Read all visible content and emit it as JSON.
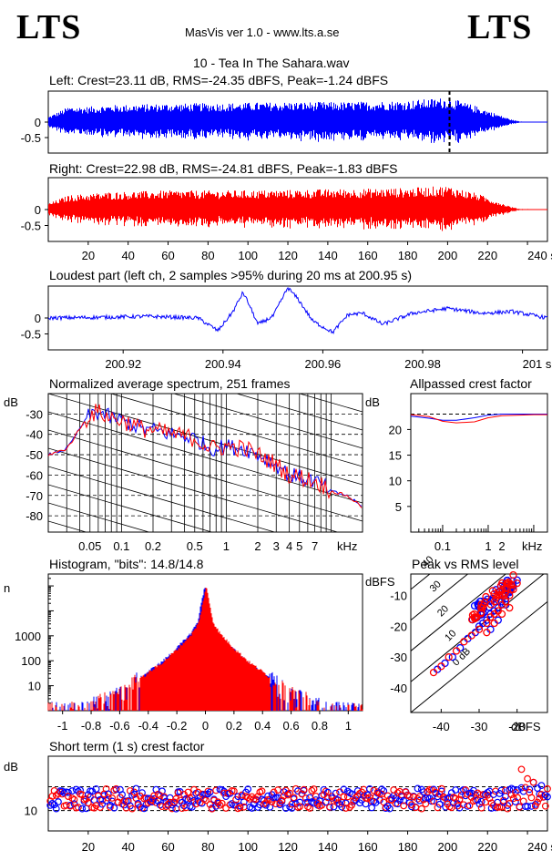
{
  "logo_left": "LTS",
  "logo_right": "LTS",
  "app_title": "MasVis ver 1.0 - www.lts.a.se",
  "file_name": "10 - Tea In The Sahara.wav",
  "colors": {
    "left": "#0000ff",
    "right": "#ff0000",
    "grid": "#000000"
  },
  "chart_data": [
    {
      "id": "left",
      "type": "line",
      "title": "Left: Crest=23.11 dB, RMS=-24.35 dBFS, Peak=-1.24 dBFS",
      "y_ticks": [
        "0",
        "-0.5"
      ],
      "y_ticks_values": [
        0,
        -0.5
      ],
      "ylim": [
        -1,
        1
      ],
      "xlim": [
        0,
        250
      ],
      "marker_x": 200.95,
      "envelope": {
        "x": [
          0,
          10,
          20,
          30,
          60,
          90,
          120,
          150,
          180,
          200,
          215,
          225,
          232,
          236,
          250
        ],
        "amp": [
          0.18,
          0.5,
          0.5,
          0.55,
          0.6,
          0.62,
          0.65,
          0.65,
          0.7,
          0.8,
          0.5,
          0.25,
          0.08,
          0.02,
          0.01
        ]
      }
    },
    {
      "id": "right",
      "type": "line",
      "title": "Right: Crest=22.98 dB, RMS=-24.81 dBFS, Peak=-1.83 dBFS",
      "y_ticks": [
        "0",
        "-0.5"
      ],
      "y_ticks_values": [
        0,
        -0.5
      ],
      "ylim": [
        -1,
        1
      ],
      "xlim": [
        0,
        250
      ],
      "x_ticks": [
        "20",
        "40",
        "60",
        "80",
        "100",
        "120",
        "140",
        "160",
        "180",
        "200",
        "220",
        "240 s"
      ],
      "x_ticks_values": [
        20,
        40,
        60,
        80,
        100,
        120,
        140,
        160,
        180,
        200,
        220,
        240
      ],
      "envelope": {
        "x": [
          0,
          10,
          20,
          30,
          60,
          90,
          120,
          150,
          180,
          200,
          215,
          225,
          232,
          236,
          250
        ],
        "amp": [
          0.2,
          0.45,
          0.5,
          0.55,
          0.6,
          0.6,
          0.62,
          0.65,
          0.68,
          0.75,
          0.5,
          0.25,
          0.08,
          0.02,
          0.01
        ]
      }
    },
    {
      "id": "loudest",
      "type": "line",
      "title": "Loudest part (left  ch, 2 samples >95% during 20 ms at 200.95 s)",
      "y_ticks": [
        "0",
        "-0.5"
      ],
      "y_ticks_values": [
        0,
        -0.5
      ],
      "ylim": [
        -1,
        1
      ],
      "xlim": [
        200.905,
        201.005
      ],
      "x_ticks": [
        "200.92",
        "200.94",
        "200.96",
        "200.98",
        "201 s"
      ],
      "x_ticks_values": [
        200.92,
        200.94,
        200.96,
        200.98,
        201.0
      ],
      "x": [
        200.905,
        200.915,
        200.925,
        200.935,
        200.938,
        200.939,
        200.942,
        200.944,
        200.945,
        200.947,
        200.95,
        200.953,
        200.955,
        200.958,
        200.962,
        200.965,
        200.968,
        200.972,
        200.978,
        200.985,
        200.992,
        200.998,
        201.005
      ],
      "y": [
        0,
        0.02,
        0.05,
        0.0,
        -0.3,
        -0.4,
        0.2,
        0.8,
        0.5,
        -0.2,
        0.05,
        0.95,
        0.6,
        -0.1,
        -0.45,
        0.1,
        0.15,
        -0.2,
        0.15,
        0.3,
        0.15,
        0.2,
        0.0
      ]
    },
    {
      "id": "spectrum",
      "type": "line",
      "title": "Normalized average spectrum, 251 frames",
      "y_unit": "dB",
      "y_ticks": [
        "-30",
        "-40",
        "-50",
        "-60",
        "-70",
        "-80"
      ],
      "y_ticks_values": [
        -30,
        -40,
        -50,
        -60,
        -70,
        -80
      ],
      "ylim": [
        -88,
        -20
      ],
      "xlim": [
        0.02,
        20
      ],
      "x_scale": "log",
      "x_ticks": [
        "0.05",
        "0.1",
        "0.2",
        "0.5",
        "1",
        "2",
        "3",
        "4",
        "5",
        "7",
        "kHz"
      ],
      "x_ticks_values": [
        0.05,
        0.1,
        0.2,
        0.5,
        1,
        2,
        3,
        4,
        5,
        7
      ],
      "x": [
        0.02,
        0.03,
        0.04,
        0.05,
        0.06,
        0.08,
        0.1,
        0.15,
        0.2,
        0.3,
        0.5,
        0.7,
        1,
        1.5,
        2,
        3,
        4,
        5,
        7,
        10,
        14,
        20
      ],
      "y": [
        -50,
        -47,
        -37,
        -30,
        -29,
        -32,
        -33,
        -37,
        -38,
        -40,
        -42,
        -47,
        -46,
        -47,
        -50,
        -55,
        -60,
        -61,
        -63,
        -68,
        -70,
        -76
      ]
    },
    {
      "id": "crest",
      "type": "line",
      "title": "Allpassed crest factor",
      "y_unit": "dB",
      "y_ticks": [
        "20",
        "15",
        "10",
        "5"
      ],
      "y_ticks_values": [
        20,
        15,
        10,
        5
      ],
      "ylim": [
        0,
        27
      ],
      "xlim": [
        0.02,
        20
      ],
      "x_scale": "log",
      "x_ticks": [
        "0.1",
        "1",
        "2",
        "kHz"
      ],
      "x_ticks_values": [
        0.1,
        1,
        2
      ],
      "reference": 23.0,
      "series": [
        {
          "name": "left",
          "x": [
            0.02,
            0.05,
            0.1,
            0.2,
            0.5,
            1,
            2,
            5,
            10,
            20
          ],
          "y": [
            22.6,
            22.2,
            21.8,
            21.8,
            22.3,
            22.8,
            23.0,
            23.0,
            23.0,
            23.0
          ]
        },
        {
          "name": "right",
          "x": [
            0.02,
            0.05,
            0.1,
            0.2,
            0.5,
            1,
            2,
            5,
            10,
            20
          ],
          "y": [
            22.9,
            22.5,
            21.6,
            21.3,
            21.5,
            22.3,
            22.7,
            22.8,
            22.9,
            22.9
          ]
        }
      ]
    },
    {
      "id": "histogram",
      "type": "line",
      "title": "Histogram, \"bits\": 14.8/14.8",
      "y_unit": "n",
      "y_scale": "log",
      "y_ticks": [
        "1000",
        "100",
        "10"
      ],
      "y_ticks_values": [
        1000,
        100,
        10
      ],
      "ylim": [
        1,
        300000
      ],
      "xlim": [
        -1.1,
        1.1
      ],
      "x_ticks": [
        "-1",
        "-0.8",
        "-0.6",
        "-0.4",
        "-0.2",
        "0",
        "0.2",
        "0.4",
        "0.6",
        "0.8",
        "1"
      ],
      "x_ticks_values": [
        -1,
        -0.8,
        -0.6,
        -0.4,
        -0.2,
        0,
        0.2,
        0.4,
        0.6,
        0.8,
        1
      ],
      "x": [
        -1.0,
        -0.85,
        -0.75,
        -0.6,
        -0.5,
        -0.4,
        -0.3,
        -0.2,
        -0.1,
        -0.05,
        0,
        0.05,
        0.1,
        0.2,
        0.3,
        0.4,
        0.5,
        0.6,
        0.75,
        0.85,
        1.0
      ],
      "y": [
        1,
        1,
        2,
        4,
        12,
        35,
        90,
        300,
        1200,
        3500,
        100000,
        3500,
        1200,
        300,
        90,
        35,
        12,
        4,
        2,
        1,
        1
      ]
    },
    {
      "id": "peak_rms",
      "type": "scatter",
      "title": "Peak vs RMS level",
      "y_unit": "dBFS",
      "x_unit": "dBFS",
      "y_ticks": [
        "-10",
        "-20",
        "-30",
        "-40"
      ],
      "y_ticks_values": [
        -10,
        -20,
        -30,
        -40
      ],
      "x_ticks": [
        "-40",
        "-30",
        "-20"
      ],
      "x_ticks_values": [
        -40,
        -30,
        -20
      ],
      "xlim": [
        -48,
        -12
      ],
      "ylim": [
        -48,
        -3
      ],
      "crest_lines": [
        "40",
        "30",
        "20",
        "10",
        "0 dB"
      ],
      "crest_lines_values": [
        40,
        30,
        20,
        10,
        0
      ],
      "left": {
        "x": [
          -41,
          -39,
          -37,
          -35,
          -33,
          -31,
          -30,
          -29,
          -28,
          -27,
          -26,
          -25,
          -24,
          -23,
          -22,
          -21,
          -20,
          -25,
          -27,
          -23
        ],
        "y": [
          -34,
          -32,
          -30,
          -27,
          -24,
          -22,
          -20,
          -19,
          -18,
          -16,
          -15,
          -14,
          -12,
          -11,
          -9,
          -7,
          -5,
          -18,
          -21,
          -13
        ]
      },
      "right": {
        "x": [
          -42,
          -40,
          -38,
          -36,
          -34,
          -32,
          -30,
          -28,
          -27,
          -26,
          -25,
          -24,
          -23,
          -22,
          -21,
          -20,
          -26,
          -28,
          -24,
          -22
        ],
        "y": [
          -35,
          -33,
          -30,
          -28,
          -25,
          -23,
          -21,
          -19,
          -17,
          -16,
          -15,
          -13,
          -12,
          -10,
          -8,
          -6,
          -19,
          -22,
          -16,
          -14
        ]
      }
    },
    {
      "id": "short_crest",
      "type": "scatter",
      "title": "Short term (1 s) crest factor",
      "y_unit": "dB",
      "y_ticks": [
        "10"
      ],
      "y_ticks_values": [
        10
      ],
      "ylim": [
        4,
        26
      ],
      "xlim": [
        0,
        250
      ],
      "reference_lines": [
        10,
        17
      ],
      "x_ticks": [
        "20",
        "40",
        "60",
        "80",
        "100",
        "120",
        "140",
        "160",
        "180",
        "200",
        "220",
        "240 s"
      ],
      "x_ticks_values": [
        20,
        40,
        60,
        80,
        100,
        120,
        140,
        160,
        180,
        200,
        220,
        240
      ],
      "left_mean": 13.5,
      "right_mean": 13.5
    }
  ]
}
